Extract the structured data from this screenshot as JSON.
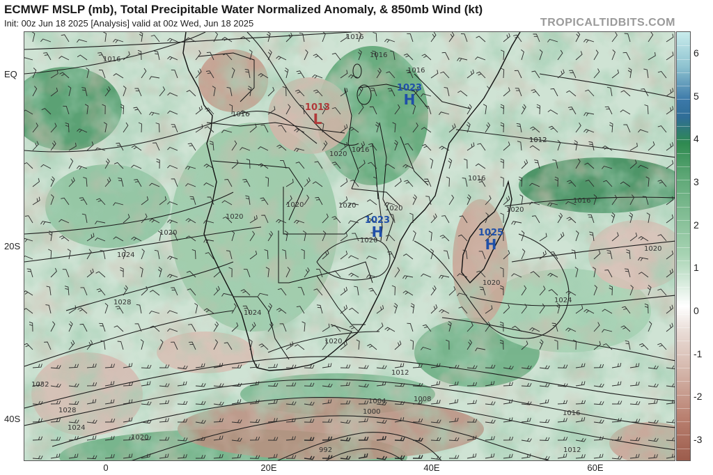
{
  "header": {
    "title": "ECMWF MSLP (mb), Total Precipitable Water Normalized Anomaly, & 850mb Wind (kt)",
    "subtitle": "Init: 00z Jun 18 2025   [Analysis]   valid at 00z Wed, Jun 18 2025",
    "brand": "TROPICALTIDBITS.COM"
  },
  "axes": {
    "lat_labels": [
      "EQ",
      "20S",
      "40S"
    ],
    "lon_labels": [
      "0",
      "20E",
      "40E",
      "60E"
    ]
  },
  "colorbar": {
    "ticks": [
      "6",
      "5",
      "4",
      "3",
      "2",
      "1",
      "0",
      "-1",
      "-2",
      "-3"
    ],
    "range": [
      -3.5,
      6.5
    ],
    "colors": {
      "high": "#c9ecec",
      "blue": "#3b78a8",
      "green": "#2f8a50",
      "zero": "#ffffff",
      "brown": "#9c5c4c"
    }
  },
  "pressure_centers": [
    {
      "type": "L",
      "value": "1013",
      "color": "#b03a3a"
    },
    {
      "type": "H",
      "value": "1023",
      "color": "#1f4fa8"
    },
    {
      "type": "H",
      "value": "1023",
      "color": "#1f4fa8"
    },
    {
      "type": "H",
      "value": "1025",
      "color": "#1f4fa8"
    }
  ],
  "isobar_labels": [
    "1016",
    "1016",
    "1016",
    "1016",
    "1016",
    "1016",
    "1012",
    "1016",
    "1020",
    "1020",
    "1020",
    "1020",
    "1020",
    "1020",
    "1020",
    "1020",
    "1024",
    "1024",
    "1020",
    "1028",
    "1032",
    "1028",
    "1024",
    "1020",
    "992",
    "1000",
    "1004",
    "1008",
    "1012",
    "1012",
    "1016",
    "1012",
    "1024",
    "1016",
    "1020",
    "1020"
  ]
}
